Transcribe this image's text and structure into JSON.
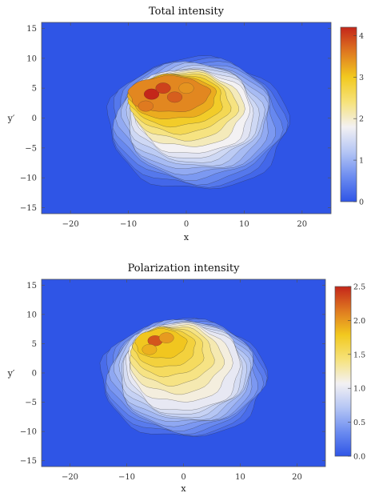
{
  "colors": {
    "background": "#3f63e0",
    "frame": "#555555",
    "colormap": [
      "#2f55e6",
      "#6c8cf0",
      "#b5c6f4",
      "#f3f1f3",
      "#f6e27a",
      "#f2c91f",
      "#df7a20",
      "#c4261a"
    ]
  },
  "chart_data": [
    {
      "type": "heatmap",
      "title": "Total intensity",
      "xlabel": "x",
      "ylabel": "y′",
      "xlim": [
        -25,
        25
      ],
      "ylim": [
        -16,
        16
      ],
      "x_ticks": [
        -20,
        -10,
        0,
        10,
        20
      ],
      "x_tick_labels": [
        "−20",
        "−10",
        "0",
        "10",
        "20"
      ],
      "y_ticks": [
        15,
        10,
        5,
        0,
        -5,
        -10,
        -15
      ],
      "y_tick_labels": [
        "15",
        "10",
        "5",
        "0",
        "−5",
        "−10",
        "−15"
      ],
      "colorbar": {
        "range": [
          0,
          4.2
        ],
        "ticks": [
          0,
          1,
          2,
          3,
          4
        ],
        "tick_labels": [
          "0",
          "1",
          "2",
          "3",
          "4"
        ]
      },
      "features": {
        "envelope": {
          "cx": 2,
          "cy": -1,
          "rx": 15.5,
          "ry": 11,
          "level": 0.2
        },
        "ridge": {
          "cx": 1,
          "cy": 1,
          "rx": 10,
          "ry": 7,
          "level": 1.8
        },
        "peak": {
          "cx": -3,
          "cy": 4,
          "rx": 7,
          "ry": 3,
          "level": 3.5
        },
        "hotspots": [
          {
            "x": -6,
            "y": 4,
            "level": 4.2
          },
          {
            "x": -4,
            "y": 5,
            "level": 4.0
          },
          {
            "x": -2,
            "y": 3.5,
            "level": 3.8
          },
          {
            "x": -7,
            "y": 2,
            "level": 3.6
          },
          {
            "x": 0,
            "y": 5,
            "level": 3.4
          }
        ]
      }
    },
    {
      "type": "heatmap",
      "title": "Polarization intensity",
      "xlabel": "x",
      "ylabel": "y′",
      "xlim": [
        -25,
        25
      ],
      "ylim": [
        -16,
        16
      ],
      "x_ticks": [
        -20,
        -10,
        0,
        10,
        20
      ],
      "x_tick_labels": [
        "−20",
        "−10",
        "0",
        "10",
        "20"
      ],
      "y_ticks": [
        15,
        10,
        5,
        0,
        -5,
        -10,
        -15
      ],
      "y_tick_labels": [
        "15",
        "10",
        "5",
        "0",
        "−5",
        "−10",
        "−15"
      ],
      "colorbar": {
        "range": [
          0,
          2.5
        ],
        "ticks": [
          0,
          0.5,
          1.0,
          1.5,
          2.0,
          2.5
        ],
        "tick_labels": [
          "0.0",
          "0.5",
          "1.0",
          "1.5",
          "2.0",
          "2.5"
        ]
      },
      "features": {
        "envelope": {
          "cx": 0,
          "cy": -1,
          "rx": 14.5,
          "ry": 10,
          "level": 0.15
        },
        "ridge": {
          "cx": 0,
          "cy": 1,
          "rx": 10,
          "ry": 7.5,
          "level": 1.0
        },
        "peak": {
          "cx": -4,
          "cy": 5,
          "rx": 4.5,
          "ry": 2.5,
          "level": 1.8
        },
        "hotspots": [
          {
            "x": -5,
            "y": 5.5,
            "level": 2.3
          },
          {
            "x": -3,
            "y": 6,
            "level": 2.0
          },
          {
            "x": -6,
            "y": 4,
            "level": 1.9
          }
        ]
      }
    }
  ]
}
